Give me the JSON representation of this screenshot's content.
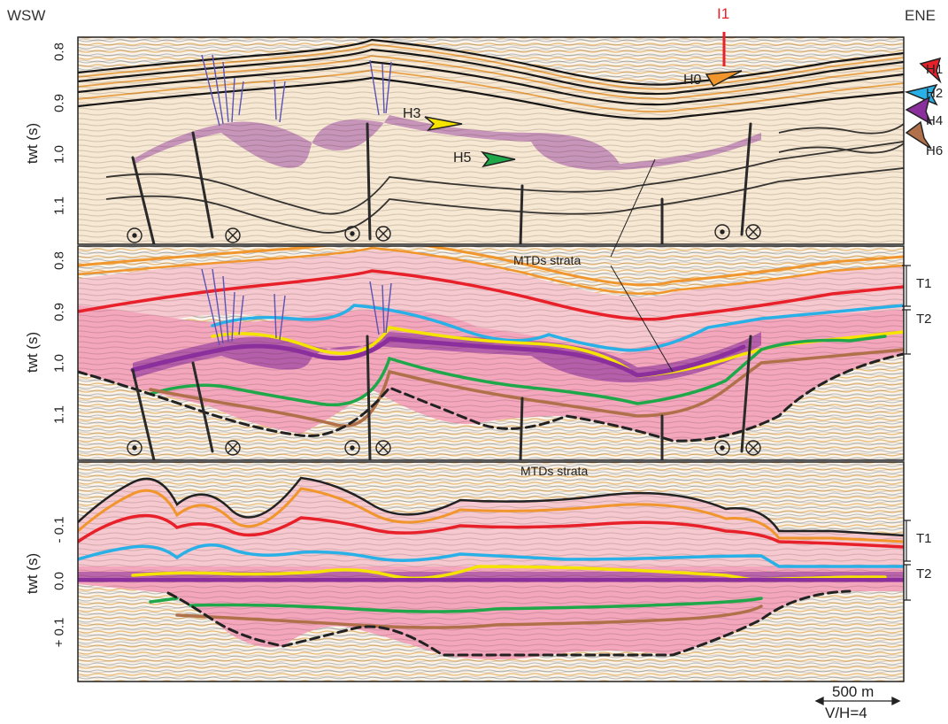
{
  "orientation": {
    "left": "WSW",
    "right": "ENE"
  },
  "well": {
    "label": "I1",
    "color": "#e8202a"
  },
  "y_axis_title": "twt (s)",
  "panels": [
    {
      "ticks": [
        "0.8",
        "0.9",
        "1.0",
        "1.1"
      ]
    },
    {
      "ticks": [
        "0.8",
        "0.9",
        "1.0",
        "1.1"
      ],
      "mtd_label": "MTDs strata"
    },
    {
      "ticks": [
        "- 0.1",
        "0.0",
        "+ 0.1"
      ],
      "mtd_label": "MTDs strata"
    }
  ],
  "horizons": [
    {
      "label": "H0",
      "color": "#f0962c"
    },
    {
      "label": "H1",
      "color": "#e8202a"
    },
    {
      "label": "H2",
      "color": "#29b0e6"
    },
    {
      "label": "H3",
      "color": "#f5e400"
    },
    {
      "label": "H4",
      "color": "#8b2f9c"
    },
    {
      "label": "H5",
      "color": "#1ea84a"
    },
    {
      "label": "H6",
      "color": "#b0714a"
    }
  ],
  "units": [
    {
      "label": "T1"
    },
    {
      "label": "T2"
    }
  ],
  "colors": {
    "t1_fill": "#f6c8cf",
    "t2_fill": "#f4a6bd",
    "mtd_fill": "#8b2f9c",
    "fault": "#2a2a2a",
    "small_fault": "#5a52b5"
  },
  "scale_bar": {
    "distance": "500 m",
    "exaggeration": "V/H=4"
  }
}
